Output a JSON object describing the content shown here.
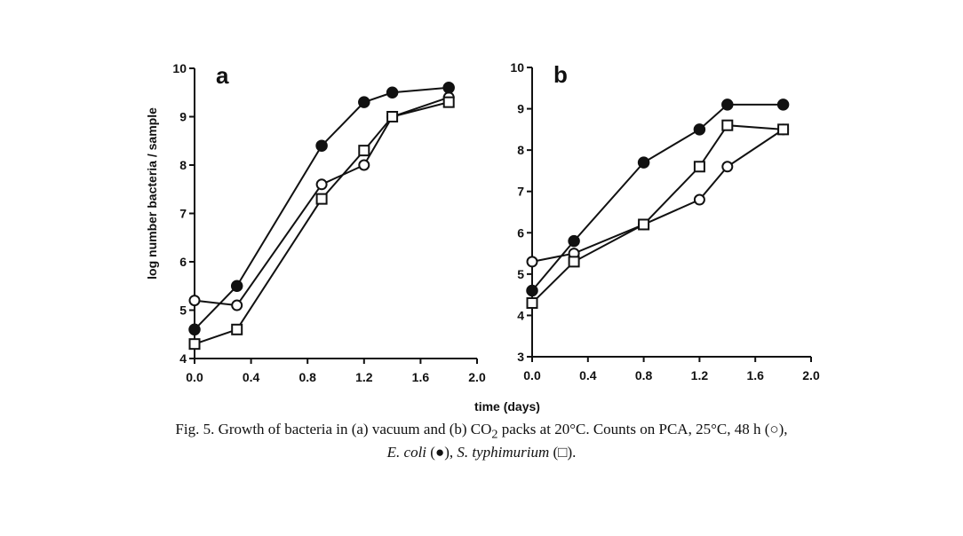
{
  "figure": {
    "shared_ylabel": "log number bacteria / sample",
    "shared_xlabel": "time (days)",
    "caption": {
      "line1_a": "Fig. 5. Growth of bacteria in (a) vacuum and (b) CO",
      "line1_sub": "2",
      "line1_b": " packs at 20°C. Counts on PCA, 25°C, 48 h (○),",
      "line2_species1": "E. coli",
      "line2_mid": " (●), ",
      "line2_species2": "S. typhimurium",
      "line2_end": " (□)."
    }
  },
  "chart_data": [
    {
      "type": "line",
      "panel_label": "a",
      "xlabel": "time (days)",
      "ylabel": "log number bacteria / sample",
      "xlim": [
        0.0,
        2.0
      ],
      "ylim": [
        4,
        10
      ],
      "xticks": [
        "0.0",
        "0.4",
        "0.8",
        "1.2",
        "1.6",
        "2.0"
      ],
      "yticks": [
        "4",
        "5",
        "6",
        "7",
        "8",
        "9",
        "10"
      ],
      "series": [
        {
          "marker": "open-circle",
          "x": [
            0.0,
            0.3,
            0.9,
            1.2,
            1.4,
            1.8
          ],
          "y": [
            5.2,
            5.1,
            7.6,
            8.0,
            9.0,
            9.4
          ]
        },
        {
          "marker": "filled-circle",
          "x": [
            0.0,
            0.3,
            0.9,
            1.2,
            1.4,
            1.8
          ],
          "y": [
            4.6,
            5.5,
            8.4,
            9.3,
            9.5,
            9.6
          ]
        },
        {
          "marker": "open-square",
          "x": [
            0.0,
            0.3,
            0.9,
            1.2,
            1.4,
            1.8
          ],
          "y": [
            4.3,
            4.6,
            7.3,
            8.3,
            9.0,
            9.3
          ]
        }
      ]
    },
    {
      "type": "line",
      "panel_label": "b",
      "xlabel": "time (days)",
      "xlim": [
        0.0,
        2.0
      ],
      "ylim": [
        3,
        10
      ],
      "xticks": [
        "0.0",
        "0.4",
        "0.8",
        "1.2",
        "1.6",
        "2.0"
      ],
      "yticks": [
        "3",
        "4",
        "5",
        "6",
        "7",
        "8",
        "9",
        "10"
      ],
      "series": [
        {
          "marker": "open-circle",
          "x": [
            0.0,
            0.3,
            0.8,
            1.2,
            1.4,
            1.8
          ],
          "y": [
            5.3,
            5.5,
            6.2,
            6.8,
            7.6,
            8.5
          ]
        },
        {
          "marker": "filled-circle",
          "x": [
            0.0,
            0.3,
            0.8,
            1.2,
            1.4,
            1.8
          ],
          "y": [
            4.6,
            5.8,
            7.7,
            8.5,
            9.1,
            9.1
          ]
        },
        {
          "marker": "open-square",
          "x": [
            0.0,
            0.3,
            0.8,
            1.2,
            1.4,
            1.8
          ],
          "y": [
            4.3,
            5.3,
            6.2,
            7.6,
            8.6,
            8.5
          ]
        }
      ]
    }
  ]
}
